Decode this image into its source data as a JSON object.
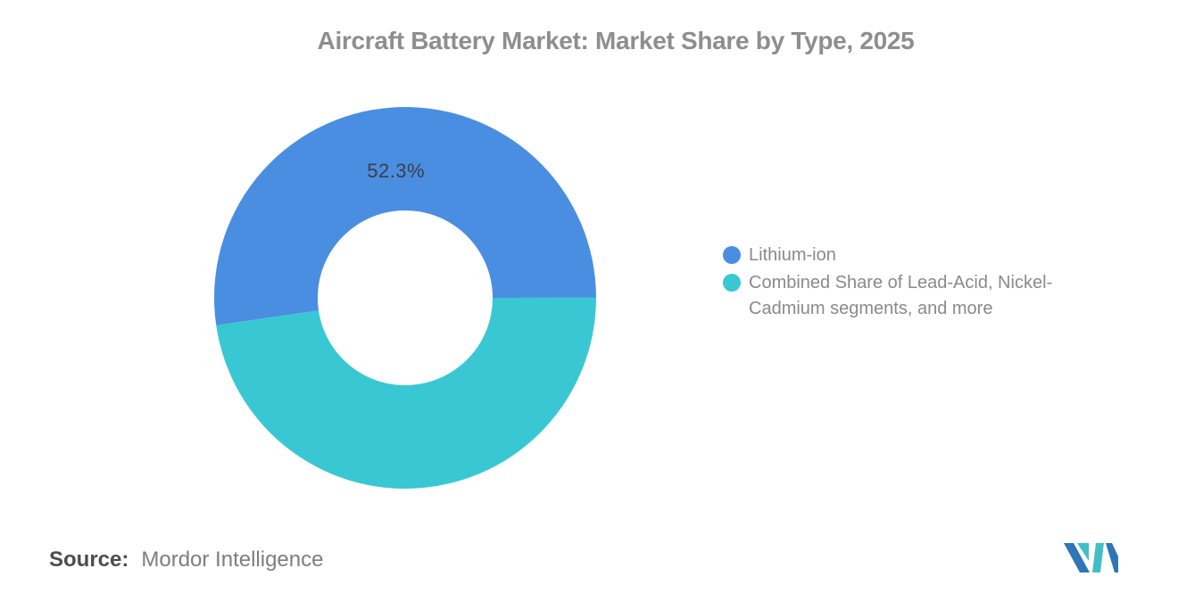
{
  "chart_data": {
    "type": "pie",
    "subtype": "donut",
    "title": "Aircraft Battery Market: Market Share by Type, 2025",
    "labels": [
      "Lithium-ion",
      "Combined Share of Lead-Acid, Nickel-Cadmium segments, and more"
    ],
    "values": [
      52.3,
      47.7
    ],
    "colors": [
      "#4A8EE2",
      "#39C8D3"
    ],
    "data_labels": [
      "52.3%",
      ""
    ],
    "inner_radius_ratio": 0.458,
    "start_angle_deg": 261.7,
    "legend_position": "right",
    "grid": false
  },
  "source": {
    "label": "Source:",
    "name": "Mordor Intelligence"
  },
  "branding": {
    "logo_name": "mordor-intelligence-logo",
    "logo_blue": "#2E76B5",
    "logo_teal": "#41BFC8"
  }
}
